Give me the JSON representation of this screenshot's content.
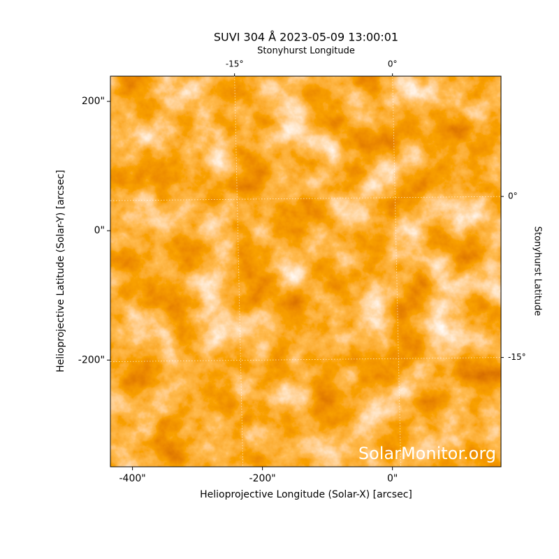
{
  "chart_data": {
    "type": "image",
    "title": "SUVI 304 Å 2023-05-09 13:00:01",
    "xlabel": "Helioprojective Longitude (Solar-X) [arcsec]",
    "ylabel": "Helioprojective Latitude (Solar-Y) [arcsec]",
    "top_xlabel": "Stonyhurst Longitude",
    "right_ylabel": "Stonyhurst Latitude",
    "watermark": "SolarMonitor.org",
    "xlim": [
      -434,
      167
    ],
    "ylim": [
      -365,
      239
    ],
    "xticks": [
      {
        "value": -400,
        "label": "-400\""
      },
      {
        "value": -200,
        "label": "-200\""
      },
      {
        "value": 0,
        "label": "0\""
      }
    ],
    "yticks": [
      {
        "value": -200,
        "label": "-200\""
      },
      {
        "value": 0,
        "label": "0\""
      },
      {
        "value": 200,
        "label": "200\""
      }
    ],
    "top_xticks": [
      {
        "value": -243,
        "label": "-15°"
      },
      {
        "value": 0,
        "label": "0°"
      }
    ],
    "right_yticks": [
      {
        "value": 53,
        "label": "0°"
      },
      {
        "value": -196,
        "label": "-15°"
      }
    ],
    "grid": true
  }
}
